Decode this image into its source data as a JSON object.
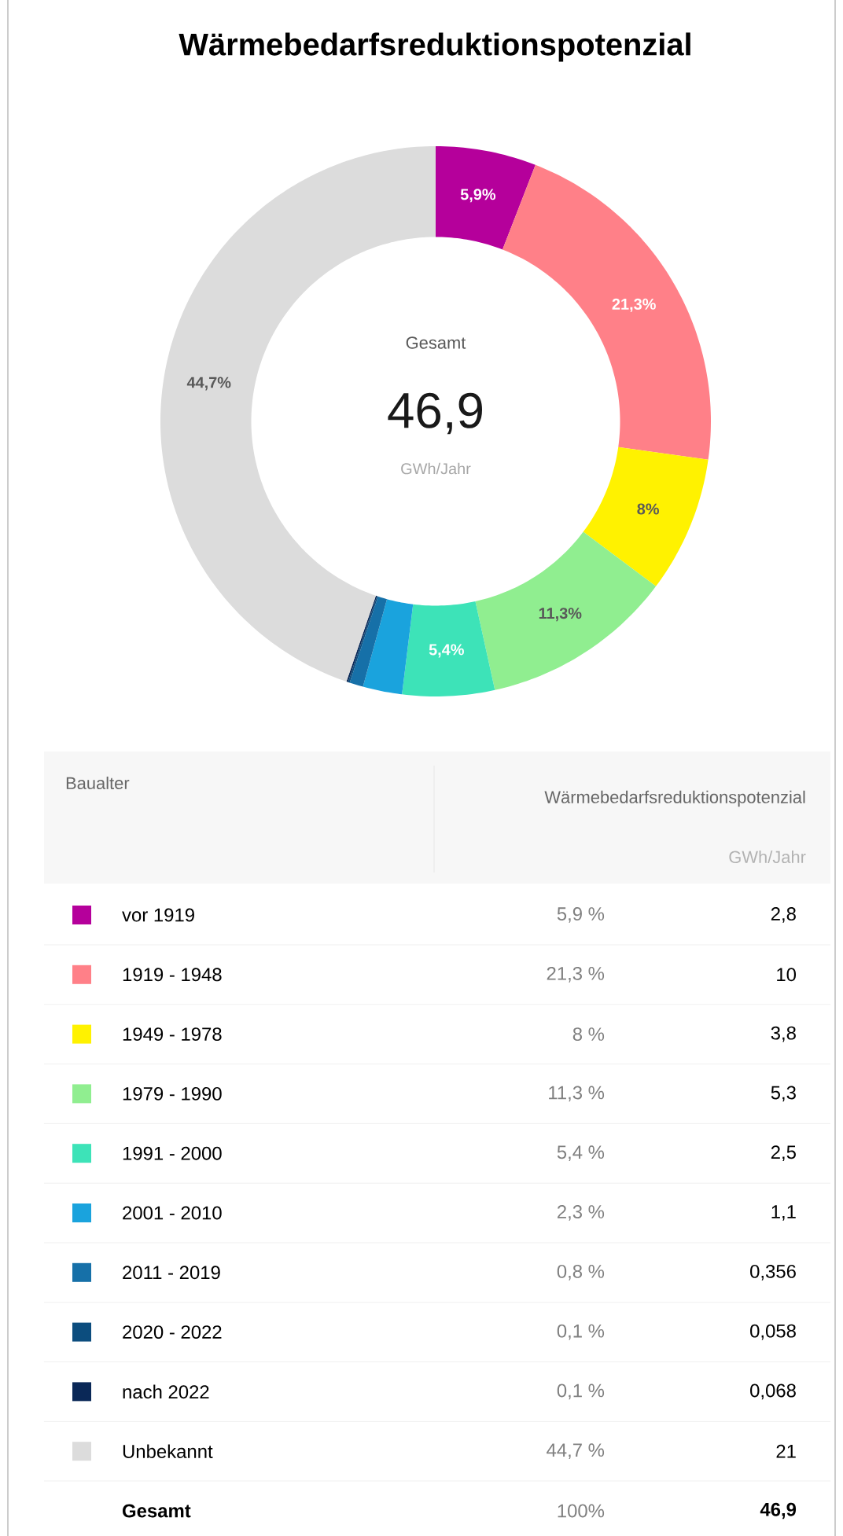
{
  "chart_data": {
    "type": "donut",
    "title": "Wärmebedarfsreduktionspotenzial",
    "categories": [
      "vor 1919",
      "1919 - 1948",
      "1949 - 1978",
      "1979 - 1990",
      "1991 - 2000",
      "2001 - 2010",
      "2011 - 2019",
      "2020 - 2022",
      "nach 2022",
      "Unbekannt"
    ],
    "values": [
      5.9,
      21.3,
      8,
      11.3,
      5.4,
      2.3,
      0.8,
      0.1,
      0.1,
      44.7
    ],
    "colors": [
      "#b5009b",
      "#ff8088",
      "#fff200",
      "#90ee90",
      "#3de3b8",
      "#1aa3dd",
      "#1670a8",
      "#0c4d7e",
      "#0a2857",
      "#dcdcdc"
    ],
    "value_labels": [
      "5,9%",
      "21,3%",
      "8%",
      "11,3%",
      "5,4%",
      null,
      null,
      null,
      null,
      "44,7%"
    ],
    "legend": "bottom",
    "annotations": [
      "Gesamt",
      "46,9",
      "GWh/Jahr",
      "Baualter",
      "Wärmebedarfsreduktionspotenzial",
      "GWh/Jahr",
      "5,9 %",
      "21,3 %",
      "8 %",
      "11,3 %",
      "5,4 %",
      "2,3 %",
      "0,8 %",
      "0,1 %",
      "0,1 %",
      "44,7 %",
      "2,8",
      "10",
      "3,8",
      "5,3",
      "2,5",
      "1,1",
      "0,356",
      "0,058",
      "0,068",
      "21",
      "Gesamt",
      "100%",
      "46,9"
    ]
  }
}
